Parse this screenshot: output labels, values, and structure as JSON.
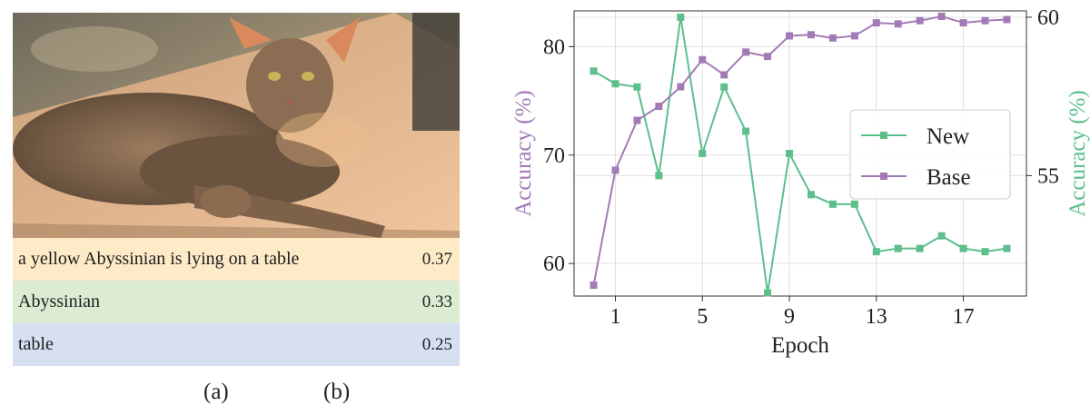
{
  "panel_a": {
    "label": "(a)",
    "captions": [
      {
        "text": "a yellow Abyssinian is lying on a table",
        "score": "0.37",
        "color": "#fdebc8"
      },
      {
        "text": "Abyssinian",
        "score": "0.33",
        "color": "#dbecd2"
      },
      {
        "text": "table",
        "score": "0.25",
        "color": "#d7dff2"
      }
    ]
  },
  "panel_b": {
    "label": "(b)"
  },
  "chart_data": {
    "type": "line",
    "xlabel": "Epoch",
    "ylabel": "Accuracy (%)",
    "ylabel_right": "Accuracy (%)",
    "x": [
      0,
      1,
      2,
      3,
      4,
      5,
      6,
      7,
      8,
      9,
      10,
      11,
      12,
      13,
      14,
      15,
      16,
      17,
      18,
      19
    ],
    "x_ticks": [
      1,
      5,
      9,
      13,
      17
    ],
    "ylim": [
      57,
      83.3
    ],
    "y_ticks": [
      60,
      70,
      80
    ],
    "ylim_right": [
      51.2,
      60.2
    ],
    "y_ticks_right": [
      55,
      60
    ],
    "grid": true,
    "legend_position": "right-center",
    "series": [
      {
        "name": "New",
        "axis": "right",
        "color": "#5cbf8c",
        "values": [
          58.3,
          57.9,
          57.8,
          55.0,
          60.0,
          55.7,
          57.8,
          56.4,
          51.3,
          55.7,
          54.4,
          54.1,
          54.1,
          52.6,
          52.7,
          52.7,
          53.1,
          52.7,
          52.6,
          52.7
        ]
      },
      {
        "name": "Base",
        "axis": "left",
        "color": "#a27bb6",
        "values": [
          58.0,
          68.6,
          73.2,
          74.5,
          76.3,
          78.8,
          77.4,
          79.5,
          79.1,
          81.0,
          81.1,
          80.8,
          81.0,
          82.2,
          82.1,
          82.4,
          82.8,
          82.2,
          82.4,
          82.5
        ]
      }
    ]
  }
}
